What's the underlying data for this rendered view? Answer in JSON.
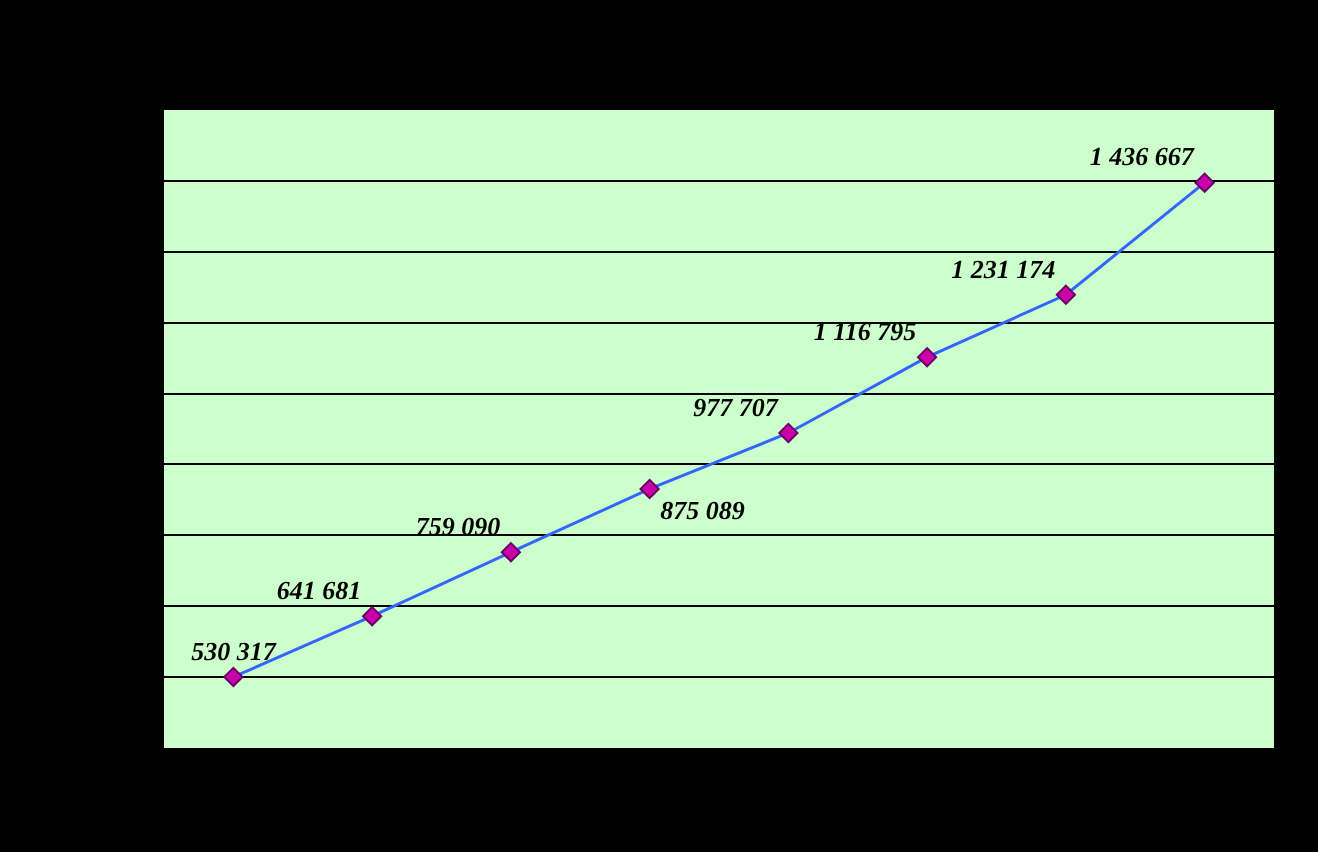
{
  "chart_data": {
    "type": "line",
    "categories": [
      null,
      null,
      null,
      null,
      null,
      null,
      null,
      null
    ],
    "series": [
      {
        "color": "#3366ff",
        "values": [
          530317,
          641681,
          759090,
          875089,
          977707,
          1116795,
          1231174,
          1436667
        ]
      }
    ],
    "ylim": [
      400000,
      1570000
    ],
    "yticks": [
      {
        "value": 400000,
        "label": null
      },
      {
        "value": 530000,
        "label": null
      },
      {
        "value": 660000,
        "label": null
      },
      {
        "value": 790000,
        "label": null
      },
      {
        "value": 920000,
        "label": null
      },
      {
        "value": 1050000,
        "label": null
      },
      {
        "value": 1180000,
        "label": null
      },
      {
        "value": 1310000,
        "label": null
      },
      {
        "value": 1440000,
        "label": null
      },
      {
        "value": 1570000,
        "label": null
      }
    ],
    "grid": "y",
    "legend": false,
    "marker": "diamond",
    "line_style": "solid",
    "data_labels": true
  }
}
